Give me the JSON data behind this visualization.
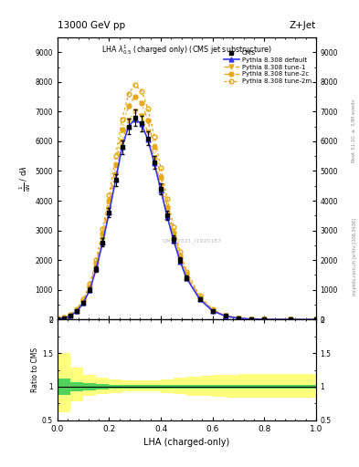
{
  "title_left": "13000 GeV pp",
  "title_right": "Z+Jet",
  "plot_title": "LHA $\\lambda^{1}_{0.5}$ (charged only) (CMS jet substructure)",
  "xlabel": "LHA (charged-only)",
  "ylabel_main": "$\\frac{1}{\\mathrm{d}N} / \\matrac{d\\lambda}$",
  "ylabel_ratio": "Ratio to CMS",
  "right_label": "mcplots.cern.ch [arXiv:1306.3436]",
  "right_label2": "Rivet 3.1.10, $\\geq$ 3.3M events",
  "watermark": "CMS_2021_I1920187",
  "xdata": [
    0.0,
    0.025,
    0.05,
    0.075,
    0.1,
    0.125,
    0.15,
    0.175,
    0.2,
    0.225,
    0.25,
    0.275,
    0.3,
    0.325,
    0.35,
    0.375,
    0.4,
    0.425,
    0.45,
    0.475,
    0.5,
    0.55,
    0.6,
    0.65,
    0.7,
    0.75,
    0.8,
    0.9,
    1.0
  ],
  "cms_y": [
    20,
    50,
    120,
    280,
    550,
    1000,
    1700,
    2600,
    3600,
    4700,
    5800,
    6500,
    6800,
    6600,
    6100,
    5300,
    4400,
    3500,
    2700,
    2000,
    1400,
    700,
    300,
    120,
    45,
    15,
    5,
    1,
    0
  ],
  "cms_yerr_lo": [
    5,
    10,
    20,
    40,
    60,
    80,
    100,
    130,
    160,
    200,
    230,
    260,
    270,
    260,
    240,
    210,
    180,
    150,
    120,
    90,
    70,
    40,
    20,
    10,
    5,
    3,
    2,
    1,
    0
  ],
  "cms_yerr_hi": [
    5,
    10,
    20,
    40,
    60,
    80,
    100,
    130,
    160,
    200,
    230,
    260,
    270,
    260,
    240,
    210,
    180,
    150,
    120,
    90,
    70,
    40,
    20,
    10,
    5,
    3,
    2,
    1,
    0
  ],
  "pythia_default_y": [
    20,
    50,
    120,
    280,
    550,
    1000,
    1700,
    2600,
    3600,
    4700,
    5800,
    6500,
    6750,
    6580,
    6050,
    5250,
    4350,
    3450,
    2650,
    1950,
    1380,
    690,
    290,
    115,
    42,
    14,
    4,
    1,
    0
  ],
  "pythia_tune1_y": [
    22,
    55,
    130,
    300,
    580,
    1050,
    1780,
    2700,
    3750,
    4900,
    6000,
    6700,
    7000,
    6850,
    6300,
    5450,
    4500,
    3580,
    2750,
    2030,
    1450,
    720,
    305,
    120,
    44,
    15,
    5,
    1,
    0
  ],
  "pythia_tune2c_y": [
    25,
    60,
    145,
    330,
    630,
    1130,
    1900,
    2900,
    4000,
    5200,
    6400,
    7200,
    7500,
    7300,
    6700,
    5800,
    4800,
    3800,
    2920,
    2150,
    1530,
    760,
    320,
    125,
    46,
    16,
    5,
    1,
    0
  ],
  "pythia_tune2m_y": [
    28,
    65,
    160,
    360,
    680,
    1200,
    2000,
    3050,
    4200,
    5500,
    6750,
    7600,
    7900,
    7700,
    7100,
    6150,
    5100,
    4050,
    3100,
    2280,
    1620,
    800,
    335,
    130,
    48,
    17,
    6,
    1,
    0
  ],
  "ratio_xedges": [
    0.0,
    0.05,
    0.1,
    0.15,
    0.2,
    0.25,
    0.3,
    0.35,
    0.4,
    0.45,
    0.5,
    0.55,
    0.6,
    0.65,
    0.7,
    0.75,
    0.8,
    0.85,
    0.9,
    0.95,
    1.0
  ],
  "ratio_green_lo": [
    0.88,
    0.93,
    0.95,
    0.96,
    0.97,
    0.97,
    0.97,
    0.97,
    0.97,
    0.97,
    0.97,
    0.97,
    0.97,
    0.97,
    0.97,
    0.97,
    0.97,
    0.97,
    0.97,
    0.97
  ],
  "ratio_green_hi": [
    1.12,
    1.07,
    1.05,
    1.04,
    1.03,
    1.03,
    1.03,
    1.03,
    1.03,
    1.03,
    1.03,
    1.03,
    1.03,
    1.03,
    1.03,
    1.03,
    1.03,
    1.03,
    1.03,
    1.03
  ],
  "ratio_yellow_lo": [
    0.62,
    0.78,
    0.86,
    0.89,
    0.91,
    0.93,
    0.93,
    0.93,
    0.91,
    0.89,
    0.87,
    0.86,
    0.85,
    0.84,
    0.83,
    0.83,
    0.83,
    0.83,
    0.83,
    0.83
  ],
  "ratio_yellow_hi": [
    1.5,
    1.28,
    1.17,
    1.13,
    1.11,
    1.09,
    1.09,
    1.09,
    1.11,
    1.13,
    1.15,
    1.16,
    1.17,
    1.18,
    1.19,
    1.19,
    1.19,
    1.19,
    1.19,
    1.19
  ],
  "xlim": [
    0.0,
    1.0
  ],
  "ylim_main_max": 9500,
  "ylim_ratio": [
    0.5,
    2.0
  ],
  "color_cms": "black",
  "color_default": "#3333ff",
  "color_orange": "#e6a817",
  "color_green": "#33cc55",
  "color_yellow": "#ffff66",
  "fig_width": 3.93,
  "fig_height": 5.12,
  "dpi": 100
}
